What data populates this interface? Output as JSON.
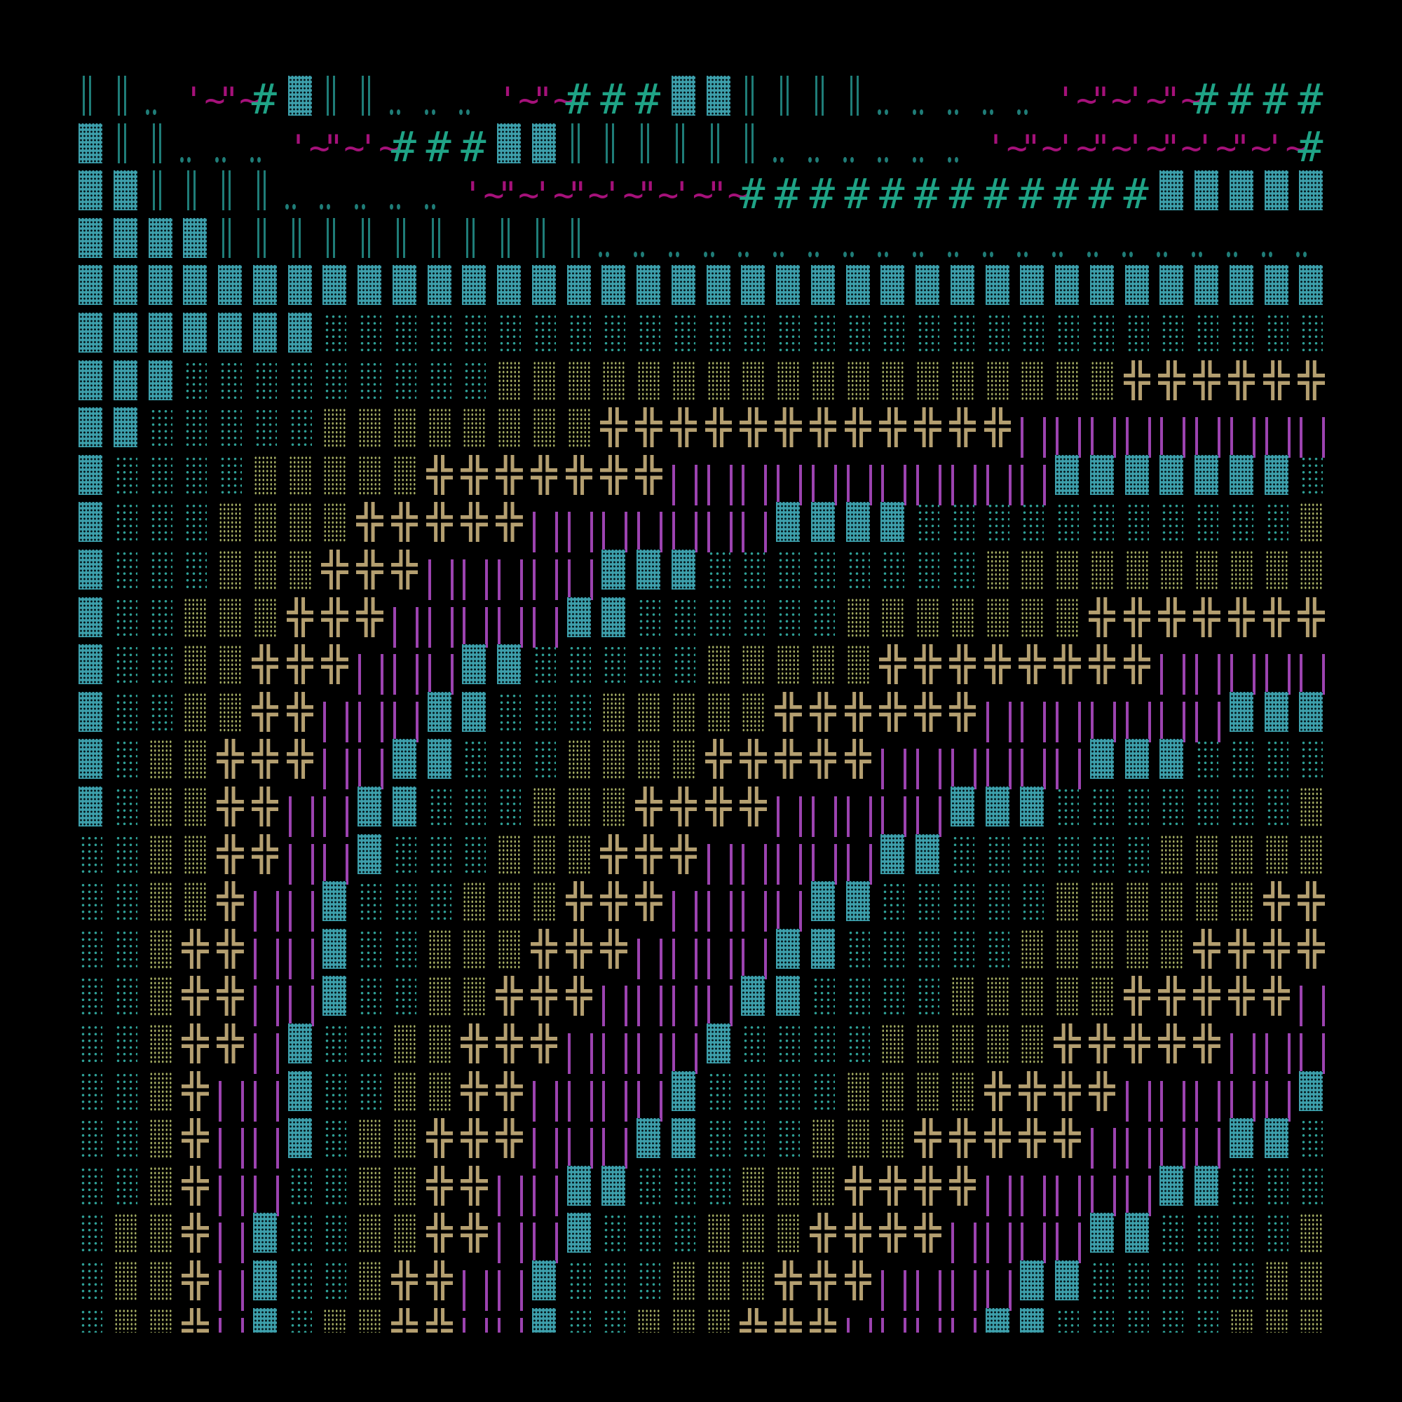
{
  "glyph_legend": {
    "▓": {
      "name": "dark-shade-block",
      "color": "#3d9fab"
    },
    "░": {
      "name": "light-shade-block",
      "color": "#2f9f96"
    },
    "▒": {
      "name": "medium-shade-block",
      "color": "#a3ab62"
    },
    "║": {
      "name": "double-vertical-line",
      "color": "#1f7d78"
    },
    ".": {
      "name": "double-dot",
      "color": "#1f7d78"
    },
    "'": {
      "name": "quote-tilde",
      "text": "'~",
      "color": "#a5117a"
    },
    "\"": {
      "name": "double-quote-tilde",
      "text": "\"~",
      "color": "#a5117a"
    },
    "#": {
      "name": "hash",
      "text": "#",
      "color": "#1fa386"
    },
    "╬": {
      "name": "box-cross",
      "text": "╬",
      "color": "#b49f70"
    },
    "|": {
      "name": "vertical-bars",
      "color": "#9c43b0"
    }
  },
  "rows": [
    "║║.'\"#▓║║...'\"###▓▓║║║║.....'\"'\"####",
    "▓║║...'\"'###▓▓║║║║║║......'\"'\"'\"'\"'#",
    "▓▓║║║║.....'\"'\"'\"'\"############▓▓▓▓▓",
    "▓▓▓▓║║║║║║║║║║║.....................",
    "▓▓▓▓▓▓▓▓▓▓▓▓▓▓▓▓▓▓▓▓▓▓▓▓▓▓▓▓▓▓▓▓▓▓▓▓",
    "▓▓▓▓▓▓▓░░░░░░░░░░░░░░░░░░░░░░░░░░░░░",
    "▓▓▓░░░░░░░░░▒▒▒▒▒▒▒▒▒▒▒▒▒▒▒▒▒▒╬╬╬╬╬╬",
    "▓▓░░░░░▒▒▒▒▒▒▒▒╬╬╬╬╬╬╬╬╬╬╬╬|||||||||",
    "▓░░░░▒▒▒▒▒╬╬╬╬╬╬╬|||||||||||▓▓▓▓▓▓▓░",
    "▓░░░▒▒▒▒╬╬╬╬╬|||||||▓▓▓▓░░░░░░░░░░░▒",
    "▓░░░▒▒▒╬╬╬|||||▓▓▓░░░░░░░░▒▒▒▒▒▒▒▒▒▒",
    "▓░░▒▒▒╬╬╬|||||▓▓░░░░░░▒▒▒▒▒▒▒╬╬╬╬╬╬╬",
    "▓░░▒▒╬╬╬|||▓▓░░░░░▒▒▒▒▒╬╬╬╬╬╬╬╬|||||",
    "▓░░▒▒╬╬|||▓▓░░░▒▒▒▒▒╬╬╬╬╬╬|||||||▓▓▓",
    "▓░▒▒╬╬╬||▓▓░░░▒▒▒▒╬╬╬╬╬||||||▓▓▓░░░░",
    "▓░▒▒╬╬||▓▓░░░▒▒▒╬╬╬╬|||||▓▓▓░░░░░░░▒",
    "░░▒▒╬╬||▓░░░▒▒▒╬╬╬|||||▓▓░░░░░░▒▒▒▒▒",
    "░░▒▒╬||▓░░░▒▒▒╬╬╬||||▓▓░░░░░▒▒▒▒▒▒╬╬",
    "░░▒╬╬||▓░░▒▒▒╬╬╬||||▓▓░░░░░▒▒▒▒▒╬╬╬╬",
    "░░▒╬╬||▓░░▒▒╬╬╬||||▓▓░░░░▒▒▒▒▒╬╬╬╬╬|",
    "░░▒╬╬|▓░░▒▒╬╬╬||||▓░░░░▒▒▒▒▒╬╬╬╬╬|||",
    "░░▒╬||▓░░▒▒╬╬||||▓░░░░▒▒▒▒╬╬╬╬|||||▓",
    "░░▒╬||▓░▒▒╬╬╬|||▓▓░░░▒▒▒╬╬╬╬╬||||▓▓░",
    "░░▒╬||░░▒▒╬╬||▓▓░░░▒▒▒╬╬╬╬|||||▓▓░░░",
    "░▒▒╬|▓░░▒▒╬╬||▓░░░▒▒▒╬╬╬╬||||▓▓░░░░▒",
    "░▒▒╬|▓░░▒╬╬||▓░░░▒▒▒╬╬╬||||▓▓░░░░░▒▒",
    "░▒▒╬|▓░▒▒╬╬||▓░░▒▒▒╬╬╬||||▓▓░░░░░▒▒▒"
  ]
}
